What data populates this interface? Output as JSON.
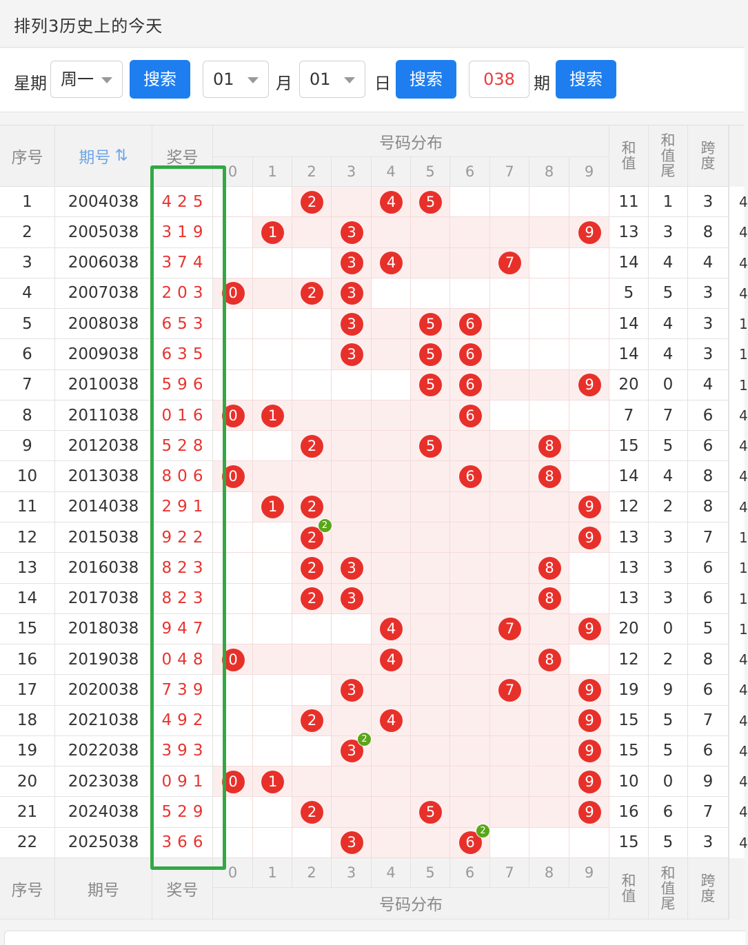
{
  "title": "排列3历史上的今天",
  "search": {
    "week_label": "星期",
    "week_value": "周一",
    "search_button": "搜索",
    "month_value": "01",
    "month_label": "月",
    "day_value": "01",
    "day_label": "日",
    "issue_value": "038",
    "issue_label": "期"
  },
  "table": {
    "headers": {
      "index": "序号",
      "period": "期号",
      "sort_icon": "⇅",
      "prize": "奖号",
      "distribution": "号码分布",
      "sum": "和值",
      "sum_tail": "和值尾",
      "span": "跨度"
    },
    "digits": [
      "0",
      "1",
      "2",
      "3",
      "4",
      "5",
      "6",
      "7",
      "8",
      "9"
    ],
    "rows": [
      {
        "idx": "1",
        "period": "2004038",
        "prize": "425",
        "sum": "11",
        "tail": "1",
        "span": "3"
      },
      {
        "idx": "2",
        "period": "2005038",
        "prize": "319",
        "sum": "13",
        "tail": "3",
        "span": "8"
      },
      {
        "idx": "3",
        "period": "2006038",
        "prize": "374",
        "sum": "14",
        "tail": "4",
        "span": "4"
      },
      {
        "idx": "4",
        "period": "2007038",
        "prize": "203",
        "sum": "5",
        "tail": "5",
        "span": "3"
      },
      {
        "idx": "5",
        "period": "2008038",
        "prize": "653",
        "sum": "14",
        "tail": "4",
        "span": "3"
      },
      {
        "idx": "6",
        "period": "2009038",
        "prize": "635",
        "sum": "14",
        "tail": "4",
        "span": "3"
      },
      {
        "idx": "7",
        "period": "2010038",
        "prize": "596",
        "sum": "20",
        "tail": "0",
        "span": "4"
      },
      {
        "idx": "8",
        "period": "2011038",
        "prize": "016",
        "sum": "7",
        "tail": "7",
        "span": "6"
      },
      {
        "idx": "9",
        "period": "2012038",
        "prize": "528",
        "sum": "15",
        "tail": "5",
        "span": "6"
      },
      {
        "idx": "10",
        "period": "2013038",
        "prize": "806",
        "sum": "14",
        "tail": "4",
        "span": "8"
      },
      {
        "idx": "11",
        "period": "2014038",
        "prize": "291",
        "sum": "12",
        "tail": "2",
        "span": "8"
      },
      {
        "idx": "12",
        "period": "2015038",
        "prize": "922",
        "sum": "13",
        "tail": "3",
        "span": "7"
      },
      {
        "idx": "13",
        "period": "2016038",
        "prize": "823",
        "sum": "13",
        "tail": "3",
        "span": "6"
      },
      {
        "idx": "14",
        "period": "2017038",
        "prize": "823",
        "sum": "13",
        "tail": "3",
        "span": "6"
      },
      {
        "idx": "15",
        "period": "2018038",
        "prize": "947",
        "sum": "20",
        "tail": "0",
        "span": "5"
      },
      {
        "idx": "16",
        "period": "2019038",
        "prize": "048",
        "sum": "12",
        "tail": "2",
        "span": "8"
      },
      {
        "idx": "17",
        "period": "2020038",
        "prize": "739",
        "sum": "19",
        "tail": "9",
        "span": "6"
      },
      {
        "idx": "18",
        "period": "2021038",
        "prize": "492",
        "sum": "15",
        "tail": "5",
        "span": "7"
      },
      {
        "idx": "19",
        "period": "2022038",
        "prize": "393",
        "sum": "15",
        "tail": "5",
        "span": "6"
      },
      {
        "idx": "20",
        "period": "2023038",
        "prize": "091",
        "sum": "10",
        "tail": "0",
        "span": "9"
      },
      {
        "idx": "21",
        "period": "2024038",
        "prize": "529",
        "sum": "16",
        "tail": "6",
        "span": "7"
      },
      {
        "idx": "22",
        "period": "2025038",
        "prize": "366",
        "sum": "15",
        "tail": "5",
        "span": "3"
      }
    ],
    "edge_column": [
      "4",
      "4",
      "4",
      "4",
      "1",
      "1",
      "1",
      "4",
      "4",
      "4",
      "4",
      "1",
      "1",
      "1",
      "1",
      "4",
      "4",
      "4",
      "4",
      "4",
      "4",
      "4"
    ]
  },
  "colors": {
    "accent_blue": "#1e7ef0",
    "ball_red": "#e8302a",
    "repeat_green": "#5aa61a",
    "highlight_green": "#32a845",
    "prize_red": "#e8332f"
  }
}
